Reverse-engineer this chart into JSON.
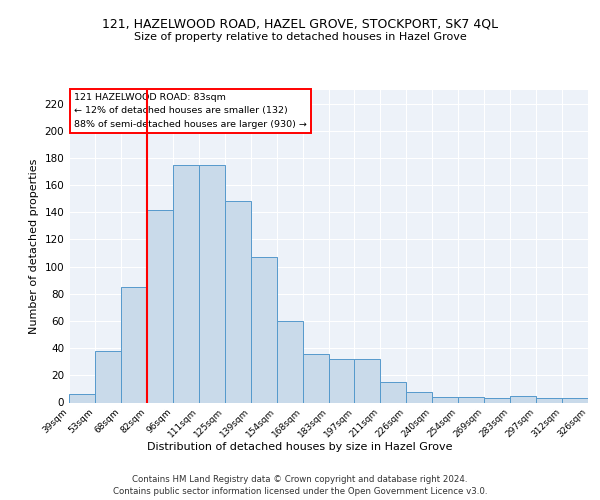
{
  "title1": "121, HAZELWOOD ROAD, HAZEL GROVE, STOCKPORT, SK7 4QL",
  "title2": "Size of property relative to detached houses in Hazel Grove",
  "xlabel": "Distribution of detached houses by size in Hazel Grove",
  "ylabel": "Number of detached properties",
  "footer1": "Contains HM Land Registry data © Crown copyright and database right 2024.",
  "footer2": "Contains public sector information licensed under the Open Government Licence v3.0.",
  "annotation_line1": "121 HAZELWOOD ROAD: 83sqm",
  "annotation_line2": "← 12% of detached houses are smaller (132)",
  "annotation_line3": "88% of semi-detached houses are larger (930) →",
  "bar_values": [
    6,
    38,
    85,
    142,
    175,
    175,
    148,
    107,
    60,
    36,
    32,
    32,
    15,
    8,
    4,
    4,
    3,
    5,
    3,
    3
  ],
  "bar_labels": [
    "39sqm",
    "53sqm",
    "68sqm",
    "82sqm",
    "96sqm",
    "111sqm",
    "125sqm",
    "139sqm",
    "154sqm",
    "168sqm",
    "183sqm",
    "197sqm",
    "211sqm",
    "226sqm",
    "240sqm",
    "254sqm",
    "269sqm",
    "283sqm",
    "297sqm",
    "312sqm",
    "326sqm"
  ],
  "bar_color": "#c9daea",
  "bar_edge_color": "#5599cc",
  "red_line_bar_index": 3,
  "ylim": [
    0,
    230
  ],
  "yticks": [
    0,
    20,
    40,
    60,
    80,
    100,
    120,
    140,
    160,
    180,
    200,
    220
  ],
  "background_color": "#edf2f9",
  "grid_color": "#ffffff",
  "fig_width": 6.0,
  "fig_height": 5.0,
  "dpi": 100
}
